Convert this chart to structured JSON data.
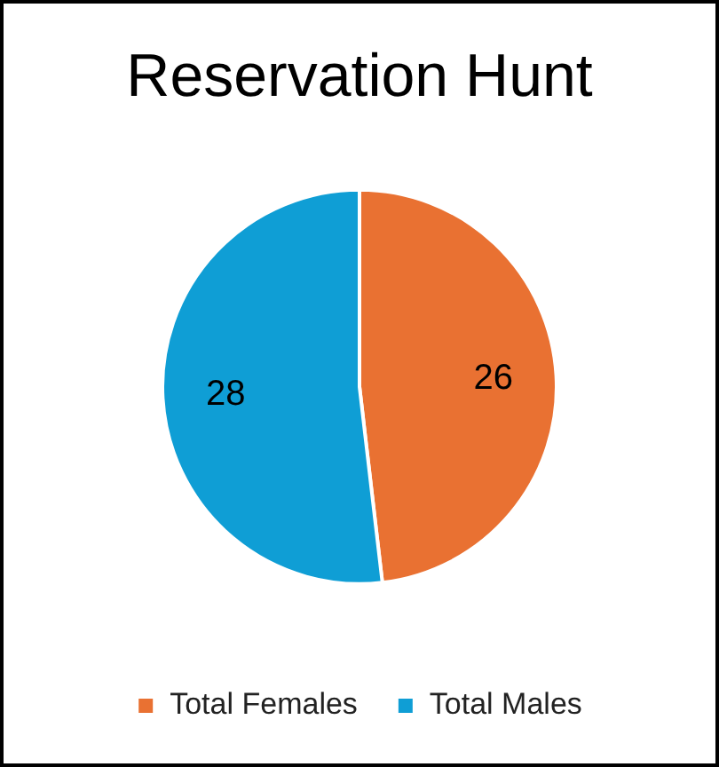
{
  "chart_data": {
    "type": "pie",
    "title": "Reservation Hunt",
    "categories": [
      "Total Females",
      "Total Males"
    ],
    "values": [
      26,
      28
    ],
    "colors": [
      "#e97132",
      "#0f9ed5"
    ],
    "data_labels": true,
    "legend": "bottom"
  }
}
